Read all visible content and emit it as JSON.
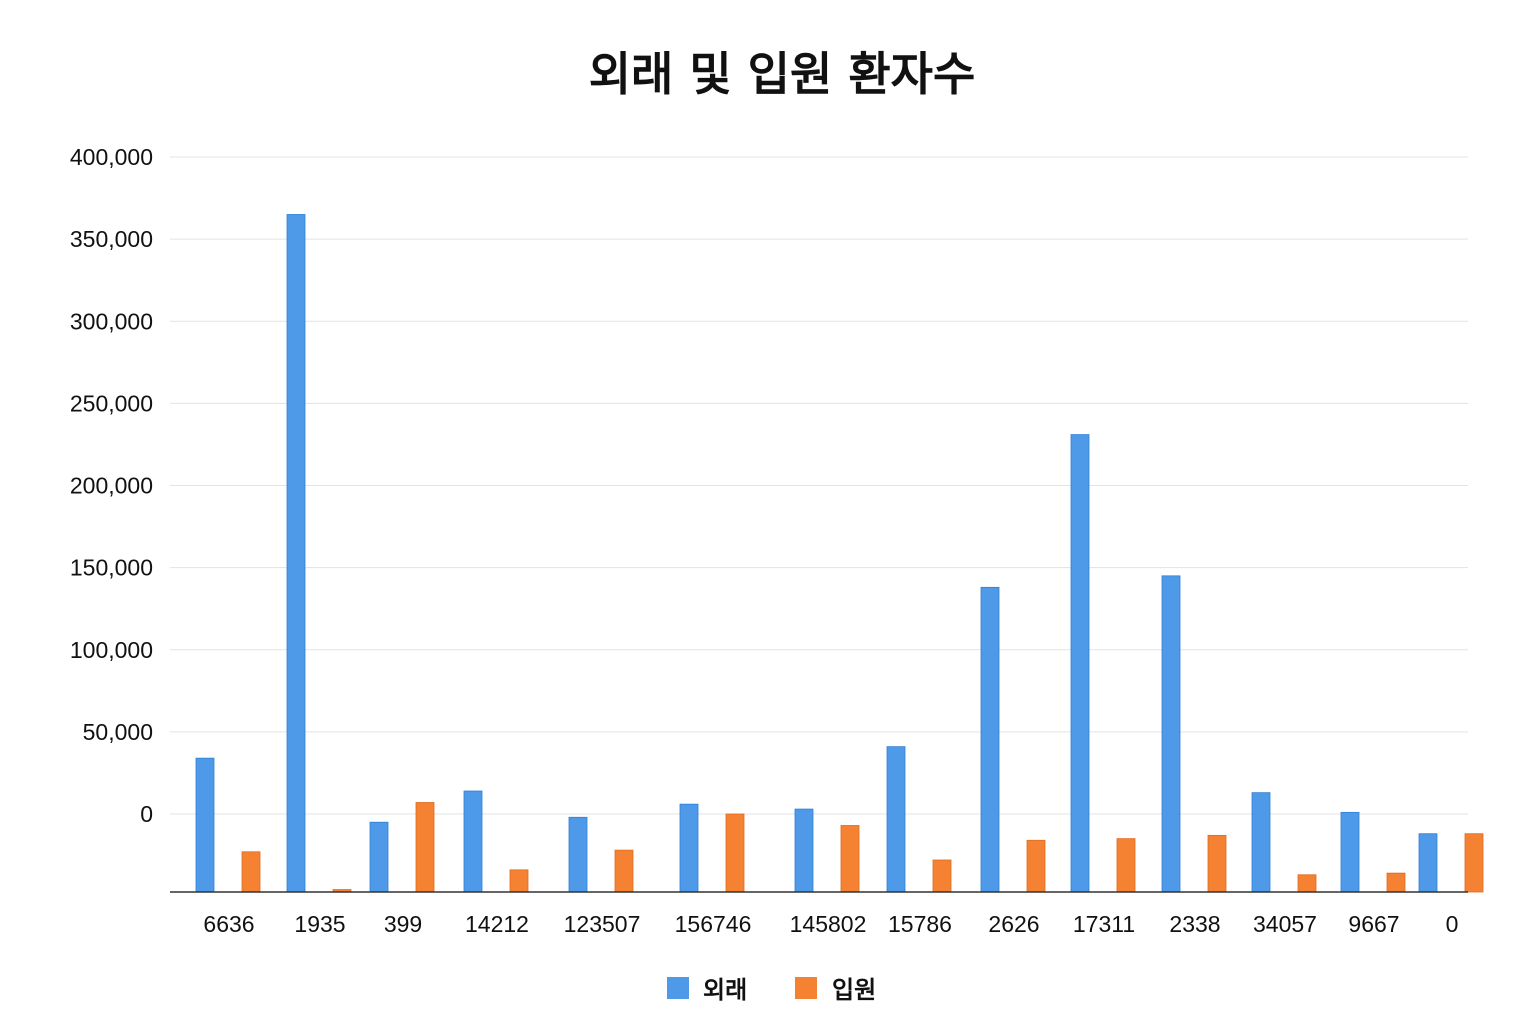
{
  "chart_data": {
    "type": "bar",
    "title": "외래 및 입원 환자수",
    "xlabel": "",
    "ylabel": "",
    "categories": [
      "6636",
      "1935",
      "399",
      "14212",
      "123507",
      "156746",
      "145802",
      "15786",
      "2626",
      "17311",
      "2338",
      "34057",
      "9667",
      "0"
    ],
    "series": [
      {
        "name": "외래",
        "color": "#4E9AE8",
        "values": [
          34000,
          365000,
          -5000,
          14000,
          -2000,
          6000,
          3000,
          41000,
          138000,
          231000,
          145000,
          13000,
          1000,
          -12000
        ]
      },
      {
        "name": "입원",
        "color": "#F58232",
        "values": [
          -23000,
          -46000,
          7000,
          -34000,
          -22000,
          0,
          -7000,
          -28000,
          -16000,
          -15000,
          -13000,
          -37000,
          -36000,
          -12000
        ]
      }
    ],
    "y_ticks": [
      "400,000",
      "350,000",
      "300,000",
      "250,000",
      "200,000",
      "150,000",
      "100,000",
      "50,000",
      "0"
    ],
    "ylim": [
      -47000,
      400000
    ],
    "grid": true,
    "legend_position": "bottom-center"
  }
}
